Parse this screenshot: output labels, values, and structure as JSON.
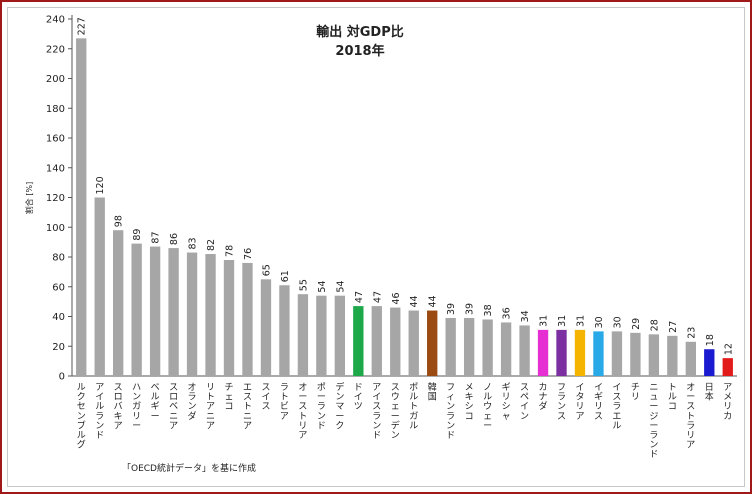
{
  "chart_data": {
    "type": "bar",
    "title": "輸出 対GDP比",
    "subtitle": "2018年",
    "ylabel": "割合 [%]",
    "xlabel": "",
    "ylim": [
      0,
      240
    ],
    "yticks": [
      "0",
      "20",
      "40",
      "60",
      "80",
      "100",
      "120",
      "140",
      "160",
      "180",
      "200",
      "220",
      "240"
    ],
    "grid": false,
    "source_note": "「OECD統計データ」を基に作成",
    "categories": [
      "ルクセンブルグ",
      "アイルランド",
      "スロバキア",
      "ハンガリー",
      "ベルギー",
      "スロベニア",
      "オランダ",
      "リトアニア",
      "チェコ",
      "エストニア",
      "スイス",
      "ラトビア",
      "オーストリア",
      "ポーランド",
      "デンマーク",
      "ドイツ",
      "アイスランド",
      "スウェーデン",
      "ポルトガル",
      "韓国",
      "フィンランド",
      "メキシコ",
      "ノルウェー",
      "ギリシャ",
      "スペイン",
      "カナダ",
      "フランス",
      "イタリア",
      "イギリス",
      "イスラエル",
      "チリ",
      "ニュージーランド",
      "トルコ",
      "オーストラリア",
      "日本",
      "アメリカ"
    ],
    "values": [
      227,
      120,
      98,
      89,
      87,
      86,
      83,
      82,
      78,
      76,
      65,
      61,
      55,
      54,
      54,
      47,
      47,
      46,
      44,
      44,
      39,
      39,
      38,
      36,
      34,
      31,
      31,
      31,
      30,
      30,
      29,
      28,
      27,
      23,
      18,
      12
    ],
    "colors": [
      "#a6a6a6",
      "#a6a6a6",
      "#a6a6a6",
      "#a6a6a6",
      "#a6a6a6",
      "#a6a6a6",
      "#a6a6a6",
      "#a6a6a6",
      "#a6a6a6",
      "#a6a6a6",
      "#a6a6a6",
      "#a6a6a6",
      "#a6a6a6",
      "#a6a6a6",
      "#a6a6a6",
      "#1fa84a",
      "#a6a6a6",
      "#a6a6a6",
      "#a6a6a6",
      "#9b4a12",
      "#a6a6a6",
      "#a6a6a6",
      "#a6a6a6",
      "#a6a6a6",
      "#a6a6a6",
      "#e52fd3",
      "#7b2fa0",
      "#f5b400",
      "#2aa9e8",
      "#a6a6a6",
      "#a6a6a6",
      "#a6a6a6",
      "#a6a6a6",
      "#a6a6a6",
      "#1a1ad0",
      "#e31a1a"
    ]
  }
}
